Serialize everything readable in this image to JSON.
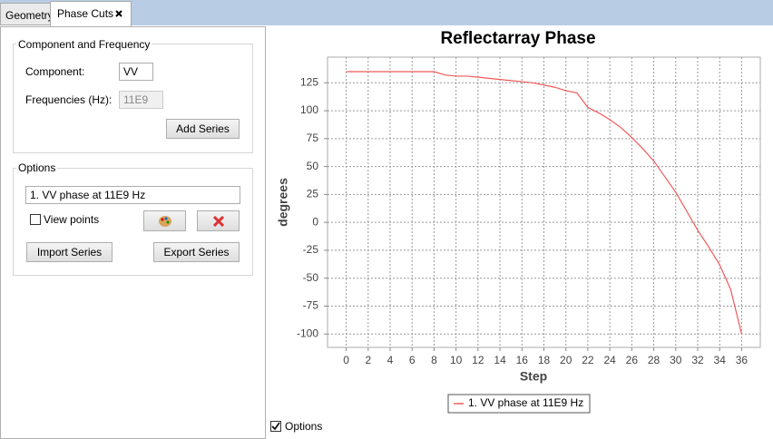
{
  "tabs": [
    "Geometry",
    "Phase Cuts"
  ],
  "left_panel": {
    "component_group": {
      "title": "Component and Frequency",
      "component_label": "Component:",
      "component_value": "VV",
      "frequencies_label": "Frequencies (Hz):",
      "frequencies_value": "11E9",
      "add_button": "Add Series"
    },
    "options_group": {
      "title": "Options",
      "series_select": "1. VV phase at 11E9 Hz",
      "view_points": "View points",
      "import_button": "Import Series",
      "export_button": "Export Series"
    }
  },
  "options_checkbox": "Options",
  "chart_data": {
    "type": "line",
    "title": "Reflectarray Phase",
    "x_label": "Step",
    "y_label": "degrees",
    "x": [
      0,
      1,
      2,
      3,
      4,
      5,
      6,
      7,
      8,
      9,
      10,
      11,
      12,
      13,
      14,
      15,
      16,
      17,
      18,
      19,
      20,
      21,
      22,
      23,
      24,
      25,
      26,
      27,
      28,
      29,
      30,
      31,
      32,
      33,
      34,
      35,
      36
    ],
    "series": [
      {
        "name": "1. VV phase at 11E9 Hz",
        "color": "#f05a5a",
        "values": [
          135,
          135,
          135,
          135,
          135,
          135,
          135,
          135,
          135,
          132,
          131,
          131,
          130,
          129,
          128,
          127,
          126,
          125,
          123,
          121,
          118,
          116,
          103,
          98,
          92,
          85,
          76,
          66,
          55,
          41,
          27,
          10,
          -7,
          -22,
          -38,
          -60,
          -100
        ]
      }
    ],
    "xlim": [
      -1.7,
      37.7
    ],
    "ylim": [
      -112,
      148
    ],
    "xticks": [
      0,
      2,
      4,
      6,
      8,
      10,
      12,
      14,
      16,
      18,
      20,
      22,
      24,
      26,
      28,
      30,
      32,
      34,
      36
    ],
    "yticks": [
      -100,
      -75,
      -50,
      -25,
      0,
      25,
      50,
      75,
      100,
      125
    ],
    "grid": true,
    "legend": "bottom"
  }
}
